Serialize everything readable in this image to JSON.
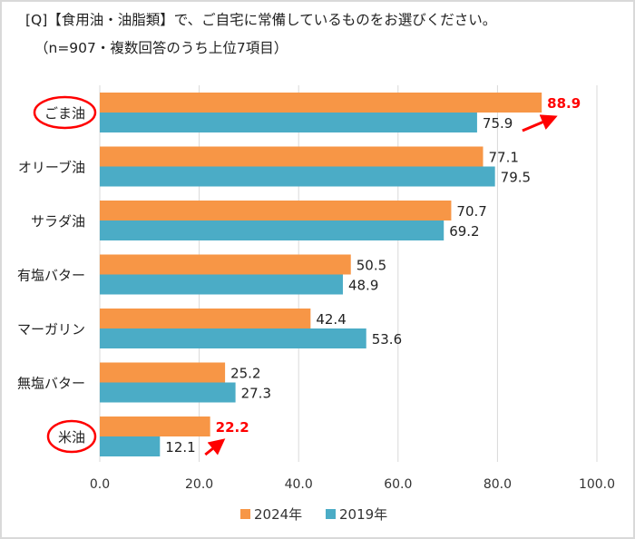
{
  "header": {
    "title": "[Q]【食用油・油脂類】で、ご自宅に常備しているものをお選びください。",
    "subtitle": "（n=907・複数回答のうち上位7項目）"
  },
  "chart_data": {
    "type": "bar",
    "orientation": "horizontal",
    "categories": [
      "ごま油",
      "オリーブ油",
      "サラダ油",
      "有塩バター",
      "マーガリン",
      "無塩バター",
      "米油"
    ],
    "series": [
      {
        "name": "2024年",
        "color": "#f79646",
        "values": [
          88.9,
          77.1,
          70.7,
          50.5,
          42.4,
          25.2,
          22.2
        ]
      },
      {
        "name": "2019年",
        "color": "#4bacc6",
        "values": [
          75.9,
          79.5,
          69.2,
          48.9,
          53.6,
          27.3,
          12.1
        ]
      }
    ],
    "xlim": [
      0,
      100
    ],
    "xticks": [
      "0.0",
      "20.0",
      "40.0",
      "60.0",
      "80.0",
      "100.0"
    ],
    "grid": true,
    "legend": "bottom",
    "highlighted_categories": [
      "ごま油",
      "米油"
    ],
    "highlight_color": "#ff0000",
    "annotations": "red arrows from 2019 to 2024 values for ごま油 and 米油"
  }
}
